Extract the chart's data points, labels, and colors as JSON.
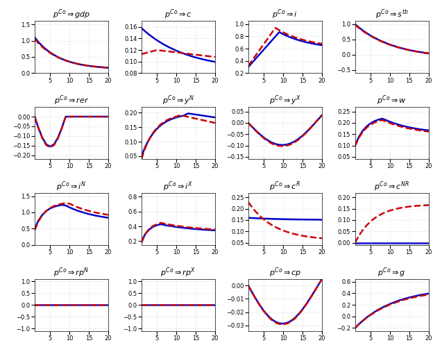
{
  "titles": [
    "p^{Co} \\Rightarrow gdp",
    "p^{Co} \\Rightarrow c",
    "p^{Co} \\Rightarrow i",
    "p^{Co} \\Rightarrow s^{tb}",
    "p^{Co} \\Rightarrow rer",
    "p^{Co} \\Rightarrow y^{N}",
    "p^{Co} \\Rightarrow y^{X}",
    "p^{Co} \\Rightarrow w",
    "p^{Co} \\Rightarrow i^{N}",
    "p^{Co} \\Rightarrow i^{X}",
    "p^{Co} \\Rightarrow c^{R}",
    "p^{Co} \\Rightarrow c^{NR}",
    "p^{Co} \\Rightarrow rp^{N}",
    "p^{Co} \\Rightarrow rp^{X}",
    "p^{Co} \\Rightarrow cp",
    "p^{Co} \\Rightarrow g"
  ],
  "blue_color": "#0000cc",
  "red_color": "#cc0000",
  "background": "#ffffff",
  "grid_color": "#aaaaaa",
  "T": 20
}
